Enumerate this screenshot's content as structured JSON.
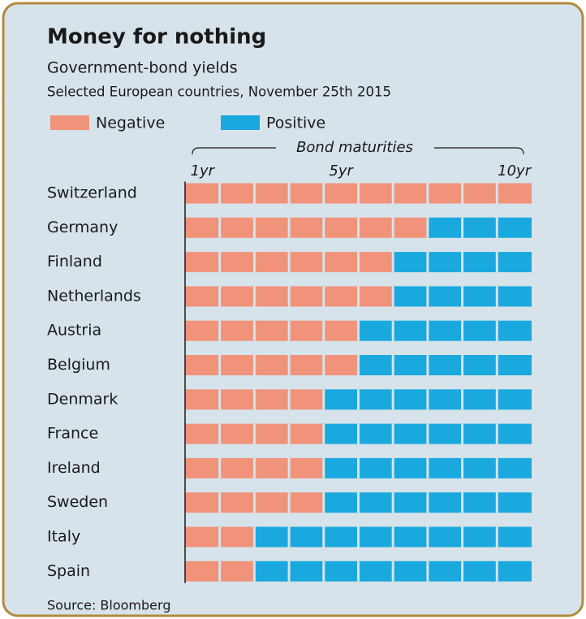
{
  "chart_data": {
    "type": "bar",
    "orientation": "horizontal",
    "stacked": true,
    "title": "Money for nothing",
    "subtitle": "Government-bond yields",
    "subtitle2": "Selected European countries, November 25th 2015",
    "x_label": "Bond maturities",
    "source": "Source: Bloomberg",
    "categories": [
      "Switzerland",
      "Germany",
      "Finland",
      "Netherlands",
      "Austria",
      "Belgium",
      "Denmark",
      "France",
      "Ireland",
      "Sweden",
      "Italy",
      "Spain"
    ],
    "series": [
      {
        "name": "Negative",
        "color": "#f0937a",
        "values": [
          10,
          7,
          6,
          6,
          5,
          5,
          4,
          4,
          4,
          4,
          2,
          2
        ]
      },
      {
        "name": "Positive",
        "color": "#1aa9de",
        "values": [
          0,
          3,
          4,
          4,
          5,
          5,
          6,
          6,
          6,
          6,
          8,
          8
        ]
      }
    ],
    "xlim": [
      0.5,
      10.5
    ],
    "xticks": [
      {
        "value": 1,
        "label": "1yr"
      },
      {
        "value": 5,
        "label": "5yr"
      },
      {
        "value": 10,
        "label": "10yr"
      }
    ]
  }
}
